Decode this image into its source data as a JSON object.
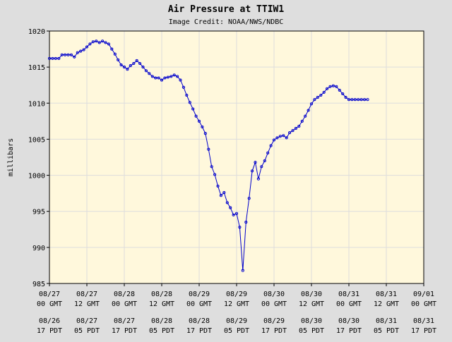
{
  "chart_data": {
    "type": "line",
    "title": "Air Pressure at TTIW1",
    "subtitle": "Image Credit: NOAA/NWS/NDBC",
    "xlabel": "",
    "ylabel": "millibars",
    "ylim": [
      985,
      1020
    ],
    "yticks": [
      985,
      990,
      995,
      1000,
      1005,
      1010,
      1015,
      1020
    ],
    "xlim_hours": [
      0,
      120
    ],
    "x_unit": "hours since 08/27 00 GMT",
    "xticks": [
      {
        "h": 0,
        "gmt_date": "08/27",
        "gmt_time": "00 GMT",
        "pdt_date": "08/26",
        "pdt_time": "17 PDT"
      },
      {
        "h": 12,
        "gmt_date": "08/27",
        "gmt_time": "12 GMT",
        "pdt_date": "08/27",
        "pdt_time": "05 PDT"
      },
      {
        "h": 24,
        "gmt_date": "08/28",
        "gmt_time": "00 GMT",
        "pdt_date": "08/27",
        "pdt_time": "17 PDT"
      },
      {
        "h": 36,
        "gmt_date": "08/28",
        "gmt_time": "12 GMT",
        "pdt_date": "08/28",
        "pdt_time": "05 PDT"
      },
      {
        "h": 48,
        "gmt_date": "08/29",
        "gmt_time": "00 GMT",
        "pdt_date": "08/28",
        "pdt_time": "17 PDT"
      },
      {
        "h": 60,
        "gmt_date": "08/29",
        "gmt_time": "12 GMT",
        "pdt_date": "08/29",
        "pdt_time": "05 PDT"
      },
      {
        "h": 72,
        "gmt_date": "08/30",
        "gmt_time": "00 GMT",
        "pdt_date": "08/29",
        "pdt_time": "17 PDT"
      },
      {
        "h": 84,
        "gmt_date": "08/30",
        "gmt_time": "12 GMT",
        "pdt_date": "08/30",
        "pdt_time": "05 PDT"
      },
      {
        "h": 96,
        "gmt_date": "08/31",
        "gmt_time": "00 GMT",
        "pdt_date": "08/30",
        "pdt_time": "17 PDT"
      },
      {
        "h": 108,
        "gmt_date": "08/31",
        "gmt_time": "12 GMT",
        "pdt_date": "08/31",
        "pdt_time": "05 PDT"
      },
      {
        "h": 120,
        "gmt_date": "09/01",
        "gmt_time": "00 GMT",
        "pdt_date": "08/31",
        "pdt_time": "17 PDT"
      }
    ],
    "grid": true,
    "colors": {
      "line": "#0000cc",
      "plot_bg": "#fff8dc",
      "page_bg": "#dedede",
      "grid": "#dddddd",
      "axis": "#000000"
    },
    "series": [
      {
        "x": [
          0,
          1,
          2,
          3,
          4,
          5,
          6,
          7,
          8,
          9,
          10,
          11,
          12,
          13,
          14,
          15,
          16,
          17,
          18,
          19,
          20,
          21,
          22,
          23,
          24,
          25,
          26,
          27,
          28,
          29,
          30,
          31,
          32,
          33,
          34,
          35,
          36,
          37,
          38,
          39,
          40,
          41,
          42,
          43,
          44,
          45,
          46,
          47,
          48,
          49,
          50,
          51,
          52,
          53,
          54,
          55,
          56,
          57,
          58,
          59,
          60,
          61,
          62,
          63,
          64,
          65,
          66,
          67,
          68,
          69,
          70,
          71,
          72,
          73,
          74,
          75,
          76,
          77,
          78,
          79,
          80,
          81,
          82,
          83,
          84,
          85,
          86,
          87,
          88,
          89,
          90,
          91,
          92,
          93,
          94,
          95,
          96,
          97,
          98,
          99,
          100,
          101,
          102
        ],
        "y": [
          1016.2,
          1016.2,
          1016.2,
          1016.2,
          1016.7,
          1016.7,
          1016.7,
          1016.7,
          1016.4,
          1017.0,
          1017.2,
          1017.4,
          1017.8,
          1018.2,
          1018.5,
          1018.6,
          1018.4,
          1018.6,
          1018.4,
          1018.2,
          1017.5,
          1016.8,
          1016.0,
          1015.3,
          1015.0,
          1014.7,
          1015.2,
          1015.5,
          1015.9,
          1015.5,
          1015.0,
          1014.5,
          1014.1,
          1013.7,
          1013.5,
          1013.5,
          1013.2,
          1013.5,
          1013.6,
          1013.7,
          1013.9,
          1013.7,
          1013.2,
          1012.2,
          1011.1,
          1010.1,
          1009.2,
          1008.2,
          1007.5,
          1006.7,
          1005.8,
          1003.6,
          1001.2,
          1000.1,
          998.5,
          997.2,
          997.6,
          996.2,
          995.5,
          994.5,
          994.7,
          992.8,
          986.8,
          993.5,
          996.8,
          1000.6,
          1001.8,
          999.5,
          1001.2,
          1002.0,
          1003.1,
          1004.1,
          1004.9,
          1005.2,
          1005.4,
          1005.5,
          1005.2,
          1005.9,
          1006.2,
          1006.5,
          1006.8,
          1007.5,
          1008.2,
          1009.0,
          1009.9,
          1010.5,
          1010.8,
          1011.1,
          1011.5,
          1012.0,
          1012.3,
          1012.4,
          1012.3,
          1011.8,
          1011.3,
          1010.8,
          1010.5,
          1010.5,
          1010.5,
          1010.5,
          1010.5,
          1010.5,
          1010.5
        ]
      }
    ]
  }
}
